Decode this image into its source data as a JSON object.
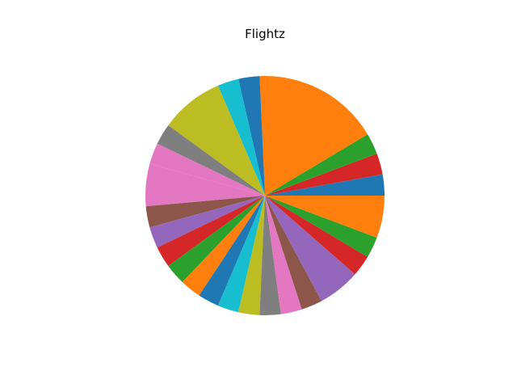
{
  "chart_data": {
    "type": "pie",
    "title": "Flightz",
    "values": [
      1,
      1,
      1,
      6,
      1,
      1,
      3,
      1,
      1,
      2,
      1,
      1,
      1,
      1,
      1,
      1,
      1,
      1,
      1,
      1,
      1,
      2,
      1,
      1,
      2
    ],
    "colors": [
      "#1f77b4",
      "#d62728",
      "#2ca02c",
      "#ff7f0e",
      "#1f77b4",
      "#17becf",
      "#bcbd22",
      "#7f7f7f",
      "#e377c2",
      "#e377c2",
      "#8c564b",
      "#9467bd",
      "#d62728",
      "#2ca02c",
      "#ff7f0e",
      "#1f77b4",
      "#17becf",
      "#bcbd22",
      "#7f7f7f",
      "#e377c2",
      "#8c564b",
      "#9467bd",
      "#d62728",
      "#2ca02c",
      "#ff7f0e"
    ],
    "start_angle_deg": 0,
    "direction": "counterclockwise",
    "legend": "none"
  }
}
